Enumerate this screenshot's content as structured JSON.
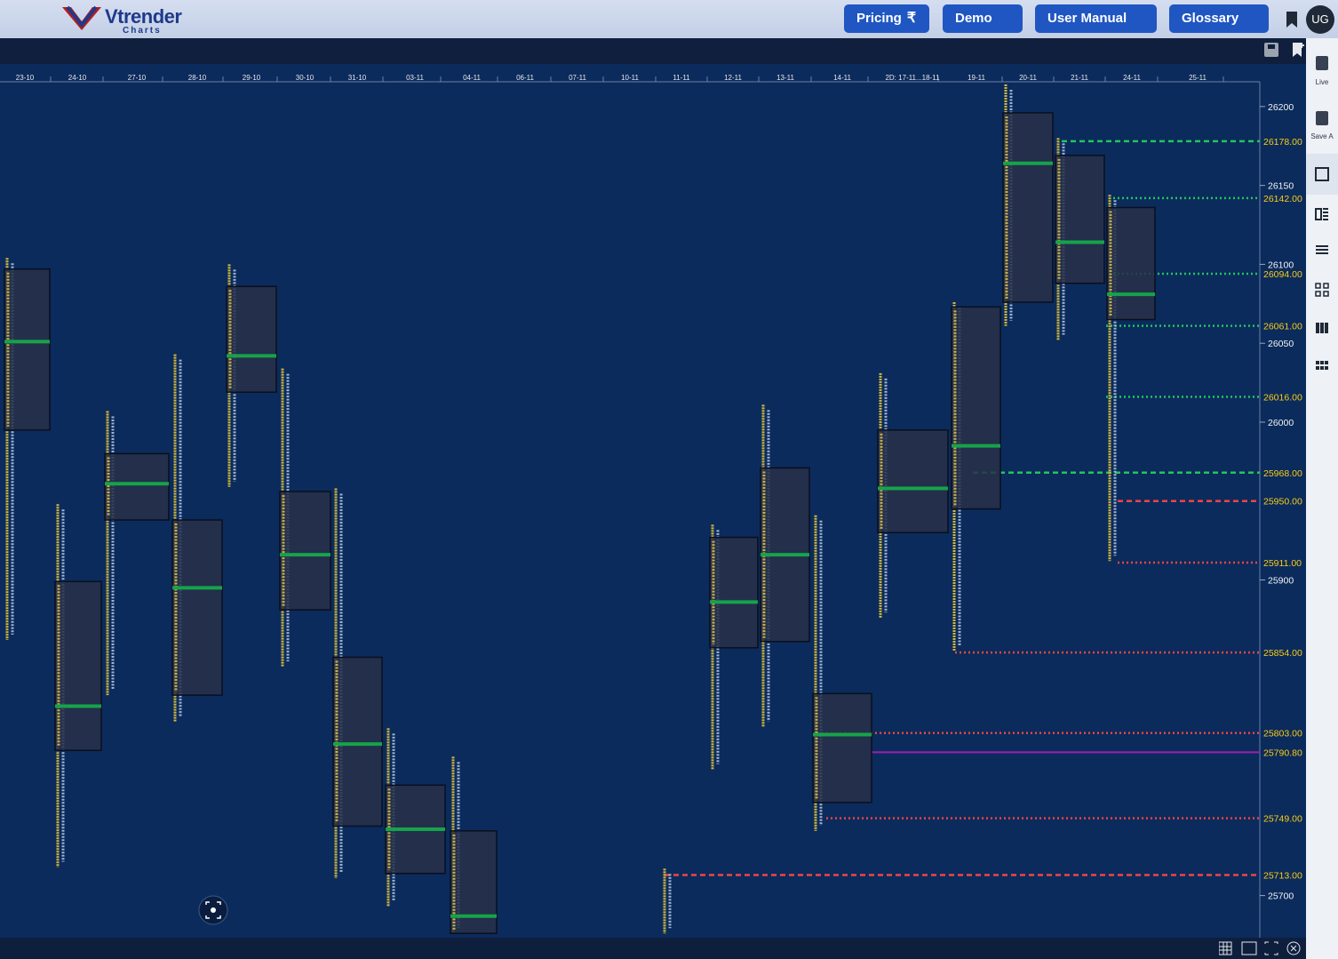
{
  "header": {
    "logo": "Vtrender",
    "logo_sub": "Charts",
    "nav": [
      "Pricing",
      "Demo",
      "User Manual",
      "Glossary"
    ],
    "avatar": "UG"
  },
  "sidebar": [
    "Live",
    "Save A"
  ],
  "chart_data": {
    "type": "market-profile",
    "categories": [
      "23-10",
      "24-10",
      "27-10",
      "28-10",
      "29-10",
      "30-10",
      "31-10",
      "03-11",
      "04-11",
      "06-11",
      "07-11",
      "10-11",
      "11-11",
      "12-11",
      "13-11",
      "14-11",
      "2D: 17-11...18-11",
      "19-11",
      "20-11",
      "21-11",
      "24-11",
      "25-11"
    ],
    "profiles": [
      {
        "high": 26104,
        "low": 25862,
        "vah": 26097,
        "val": 25995,
        "poc": 26051
      },
      {
        "high": 25948,
        "low": 25718,
        "vah": 25899,
        "val": 25792,
        "poc": 25820
      },
      {
        "high": 26007,
        "low": 25827,
        "vah": 25980,
        "val": 25938,
        "poc": 25961
      },
      {
        "high": 26043,
        "low": 25810,
        "vah": 25938,
        "val": 25827,
        "poc": 25895
      },
      {
        "high": 26100,
        "low": 25959,
        "vah": 26086,
        "val": 26019,
        "poc": 26042
      },
      {
        "high": 26034,
        "low": 25845,
        "vah": 25956,
        "val": 25881,
        "poc": 25916
      },
      {
        "high": 25958,
        "low": 25711,
        "vah": 25851,
        "val": 25744,
        "poc": 25796
      },
      {
        "high": 25806,
        "low": 25693,
        "vah": 25770,
        "val": 25714,
        "poc": 25742
      },
      {
        "high": 25788,
        "low": 25676,
        "vah": 25741,
        "val": 25676,
        "poc": 25687
      },
      null,
      null,
      null,
      {
        "high": 25717,
        "low": 25676,
        "vah": null,
        "val": null,
        "poc": null
      },
      {
        "high": 25935,
        "low": 25780,
        "vah": 25927,
        "val": 25857,
        "poc": 25886
      },
      {
        "high": 26011,
        "low": 25807,
        "vah": 25971,
        "val": 25861,
        "poc": 25916
      },
      {
        "high": 25941,
        "low": 25741,
        "vah": 25828,
        "val": 25759,
        "poc": 25802
      },
      {
        "high": 26031,
        "low": 25876,
        "vah": 25995,
        "val": 25930,
        "poc": 25958
      },
      {
        "high": 26076,
        "low": 25855,
        "vah": 26073,
        "val": 25945,
        "poc": 25985
      },
      {
        "high": 26214,
        "low": 26061,
        "vah": 26196,
        "val": 26076,
        "poc": 26164
      },
      {
        "high": 26180,
        "low": 26052,
        "vah": 26169,
        "val": 26088,
        "poc": 26114
      },
      {
        "high": 26144,
        "low": 25912,
        "vah": 26136,
        "val": 26065,
        "poc": 26081
      },
      null
    ],
    "ylim": [
      25675,
      26214
    ],
    "yticks": [
      26200,
      26150,
      26100,
      26050,
      26000,
      25900,
      25700
    ],
    "levels": [
      {
        "value": 26178,
        "label": "26178.00",
        "color": "#22c55e",
        "style": "dashed"
      },
      {
        "value": 26142,
        "label": "26142.00",
        "color": "#22c55e",
        "style": "dotted"
      },
      {
        "value": 26094,
        "label": "26094.00",
        "color": "#22c55e",
        "style": "dotted"
      },
      {
        "value": 26061,
        "label": "26061.00",
        "color": "#22c55e",
        "style": "dotted"
      },
      {
        "value": 26016,
        "label": "26016.00",
        "color": "#22c55e",
        "style": "dotted"
      },
      {
        "value": 25968,
        "label": "25968.00",
        "color": "#22c55e",
        "style": "dashed"
      },
      {
        "value": 25950,
        "label": "25950.00",
        "color": "#ef4444",
        "style": "dashed"
      },
      {
        "value": 25911,
        "label": "25911.00",
        "color": "#ef4444",
        "style": "dotted"
      },
      {
        "value": 25854,
        "label": "25854.00",
        "color": "#ef4444",
        "style": "dotted"
      },
      {
        "value": 25803,
        "label": "25803.00",
        "color": "#ef4444",
        "style": "dotted"
      },
      {
        "value": 25790.8,
        "label": "25790.80",
        "color": "#a21caf",
        "style": "solid"
      },
      {
        "value": 25749,
        "label": "25749.00",
        "color": "#ef4444",
        "style": "dotted"
      },
      {
        "value": 25713,
        "label": "25713.00",
        "color": "#ef4444",
        "style": "dashed"
      }
    ]
  }
}
